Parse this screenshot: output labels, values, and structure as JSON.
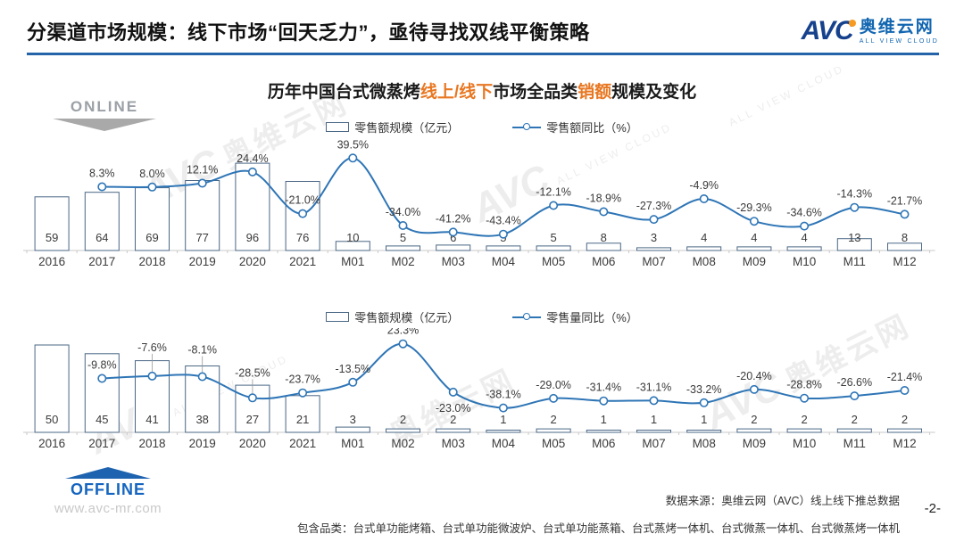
{
  "header": {
    "title": "分渠道市场规模：线下市场“回天乏力”，亟待寻找双线平衡策略",
    "logo": {
      "brand": "AVC",
      "name": "奥维云网",
      "tagline": "ALL VIEW CLOUD"
    }
  },
  "chart_title": {
    "part1": "历年中国台式微蒸烤",
    "highlight1": "线上/线下",
    "part2": "市场全品类",
    "highlight2": "销额",
    "part3": "规模及变化"
  },
  "badges": {
    "online": "ONLINE",
    "offline": "OFFLINE",
    "website": "www.avc-mr.com"
  },
  "watermark": {
    "brand": "AVC",
    "name": "奥维云网",
    "tagline": "ALL VIEW CLOUD"
  },
  "footer": {
    "source": "数据来源：奥维云网（AVC）线上线下推总数据",
    "categories": "包含品类：台式单功能烤箱、台式单功能微波炉、台式单功能蒸箱、台式蒸烤一体机、台式微蒸一体机、台式微蒸烤一体机",
    "page": "-2-"
  },
  "colors": {
    "line": "#2e75b6",
    "bar_outline": "#4a6785",
    "accent_orange": "#e87722",
    "brand_navy": "#16418c",
    "brand_blue": "#1266b1",
    "header_rule_blue": "#2563a8",
    "axis_gray": "#c9c9c9"
  },
  "chart_data": [
    {
      "type": "bar+line",
      "panel": "ONLINE",
      "title": "历年中国台式微蒸烤线上/线下市场全品类销额规模及变化",
      "legend": [
        "零售额规模（亿元）",
        "零售额同比（%）"
      ],
      "legend_position": "top-center",
      "grid": false,
      "value_labels": true,
      "categories": [
        "2016",
        "2017",
        "2018",
        "2019",
        "2020",
        "2021",
        "M01",
        "M02",
        "M03",
        "M04",
        "M05",
        "M06",
        "M07",
        "M08",
        "M09",
        "M10",
        "M11",
        "M12"
      ],
      "bar_values": [
        59,
        64,
        69,
        77,
        96,
        76,
        10,
        5,
        6,
        5,
        5,
        8,
        3,
        4,
        4,
        4,
        13,
        8
      ],
      "line_values": [
        null,
        8.3,
        8.0,
        12.1,
        24.4,
        -21.0,
        39.5,
        -34.0,
        -41.2,
        -43.4,
        -12.1,
        -18.9,
        -27.3,
        -4.9,
        -29.3,
        -34.6,
        -14.3,
        -21.7
      ]
    },
    {
      "type": "bar+line",
      "panel": "OFFLINE",
      "legend": [
        "零售额规模（亿元）",
        "零售量同比（%）"
      ],
      "legend_position": "top-center",
      "grid": false,
      "value_labels": true,
      "categories": [
        "2016",
        "2017",
        "2018",
        "2019",
        "2020",
        "2021",
        "M01",
        "M02",
        "M03",
        "M04",
        "M05",
        "M06",
        "M07",
        "M08",
        "M09",
        "M10",
        "M11",
        "M12"
      ],
      "bar_values": [
        50,
        45,
        41,
        38,
        27,
        21,
        3,
        2,
        2,
        1,
        2,
        1,
        1,
        1,
        2,
        2,
        2,
        2
      ],
      "line_values": [
        null,
        -9.8,
        -7.6,
        -8.1,
        -28.5,
        -23.7,
        -13.5,
        23.3,
        -23.0,
        -38.1,
        -29.0,
        -31.4,
        -31.1,
        -33.2,
        -20.4,
        -28.8,
        -26.6,
        -21.4
      ]
    }
  ]
}
